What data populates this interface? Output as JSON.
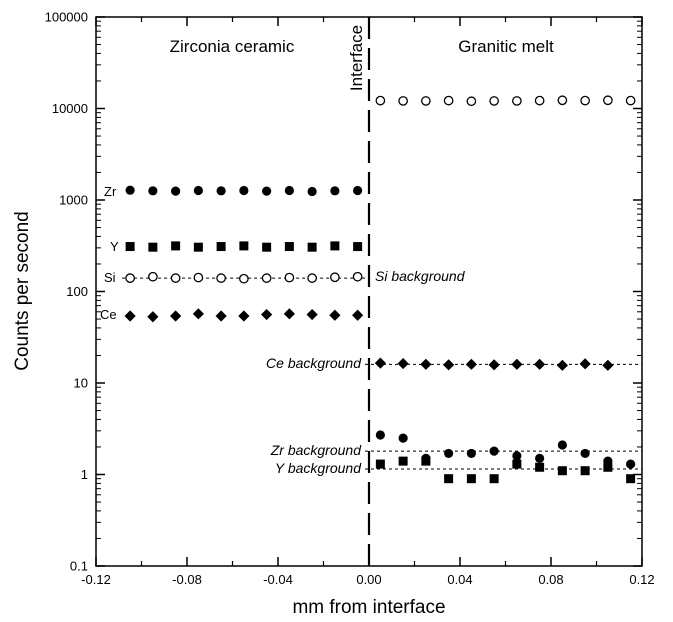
{
  "chart_data": {
    "type": "scatter",
    "xlabel": "mm from interface",
    "ylabel": "Counts per second",
    "xlim": [
      -0.12,
      0.12
    ],
    "ylim": [
      0.1,
      100000
    ],
    "yscale": "log",
    "grid": false,
    "x_ticks": [
      "-0.12",
      "-0.08",
      "-0.04",
      "0.00",
      "0.04",
      "0.08",
      "0.12"
    ],
    "x_tick_values": [
      -0.12,
      -0.08,
      -0.04,
      0.0,
      0.04,
      0.08,
      0.12
    ],
    "y_ticks": [
      "0.1",
      "1",
      "10",
      "100",
      "1000",
      "10000",
      "100000"
    ],
    "y_tick_values": [
      0.1,
      1,
      10,
      100,
      1000,
      10000,
      100000
    ],
    "regions": {
      "left": "Zirconia ceramic",
      "right": "Granitic melt",
      "interface": "Interface"
    },
    "series_labels": [
      "Zr",
      "Y",
      "Si",
      "Ce"
    ],
    "backgrounds": [
      {
        "label": "Si background",
        "value": 140
      },
      {
        "label": "Ce background",
        "value": 16
      },
      {
        "label": "Zr background",
        "value": 1.8
      },
      {
        "label": "Y background",
        "value": 1.15
      }
    ],
    "series": [
      {
        "name": "Zr",
        "marker": "filled-circle",
        "points": [
          [
            -0.105,
            1280
          ],
          [
            -0.095,
            1260
          ],
          [
            -0.085,
            1250
          ],
          [
            -0.075,
            1270
          ],
          [
            -0.065,
            1260
          ],
          [
            -0.055,
            1270
          ],
          [
            -0.045,
            1250
          ],
          [
            -0.035,
            1270
          ],
          [
            -0.025,
            1240
          ],
          [
            -0.015,
            1260
          ],
          [
            -0.005,
            1270
          ],
          [
            0.005,
            2.7
          ],
          [
            0.015,
            2.5
          ],
          [
            0.025,
            1.5
          ],
          [
            0.035,
            1.7
          ],
          [
            0.045,
            1.7
          ],
          [
            0.055,
            1.8
          ],
          [
            0.065,
            1.6
          ],
          [
            0.075,
            1.5
          ],
          [
            0.085,
            2.1
          ],
          [
            0.095,
            1.7
          ],
          [
            0.105,
            1.4
          ],
          [
            0.115,
            1.3
          ]
        ]
      },
      {
        "name": "Y",
        "marker": "filled-square",
        "points": [
          [
            -0.105,
            310
          ],
          [
            -0.095,
            305
          ],
          [
            -0.085,
            315
          ],
          [
            -0.075,
            305
          ],
          [
            -0.065,
            310
          ],
          [
            -0.055,
            315
          ],
          [
            -0.045,
            305
          ],
          [
            -0.035,
            310
          ],
          [
            -0.025,
            305
          ],
          [
            -0.015,
            315
          ],
          [
            -0.005,
            310
          ],
          [
            0.005,
            1.3
          ],
          [
            0.015,
            1.4
          ],
          [
            0.025,
            1.4
          ],
          [
            0.035,
            0.9
          ],
          [
            0.045,
            0.9
          ],
          [
            0.055,
            0.9
          ],
          [
            0.065,
            1.3
          ],
          [
            0.075,
            1.2
          ],
          [
            0.085,
            1.1
          ],
          [
            0.095,
            1.1
          ],
          [
            0.105,
            1.2
          ],
          [
            0.115,
            0.9
          ]
        ]
      },
      {
        "name": "Si",
        "marker": "open-circle",
        "points": [
          [
            -0.105,
            140
          ],
          [
            -0.095,
            145
          ],
          [
            -0.085,
            140
          ],
          [
            -0.075,
            142
          ],
          [
            -0.065,
            140
          ],
          [
            -0.055,
            138
          ],
          [
            -0.045,
            140
          ],
          [
            -0.035,
            142
          ],
          [
            -0.025,
            140
          ],
          [
            -0.015,
            143
          ],
          [
            -0.005,
            145
          ],
          [
            0.005,
            12200
          ],
          [
            0.015,
            12100
          ],
          [
            0.025,
            12100
          ],
          [
            0.035,
            12200
          ],
          [
            0.045,
            12000
          ],
          [
            0.055,
            12100
          ],
          [
            0.065,
            12100
          ],
          [
            0.075,
            12200
          ],
          [
            0.085,
            12300
          ],
          [
            0.095,
            12200
          ],
          [
            0.105,
            12300
          ],
          [
            0.115,
            12200
          ]
        ]
      },
      {
        "name": "Ce",
        "marker": "filled-diamond",
        "points": [
          [
            -0.105,
            54
          ],
          [
            -0.095,
            53
          ],
          [
            -0.085,
            54
          ],
          [
            -0.075,
            57
          ],
          [
            -0.065,
            54
          ],
          [
            -0.055,
            54
          ],
          [
            -0.045,
            56
          ],
          [
            -0.035,
            57
          ],
          [
            -0.025,
            56
          ],
          [
            -0.015,
            55
          ],
          [
            -0.005,
            55
          ],
          [
            0.005,
            16.5
          ],
          [
            0.015,
            16.3
          ],
          [
            0.025,
            16
          ],
          [
            0.035,
            15.8
          ],
          [
            0.045,
            16
          ],
          [
            0.055,
            15.8
          ],
          [
            0.065,
            16
          ],
          [
            0.075,
            16
          ],
          [
            0.085,
            15.6
          ],
          [
            0.095,
            16.2
          ],
          [
            0.105,
            15.6
          ]
        ]
      }
    ]
  }
}
